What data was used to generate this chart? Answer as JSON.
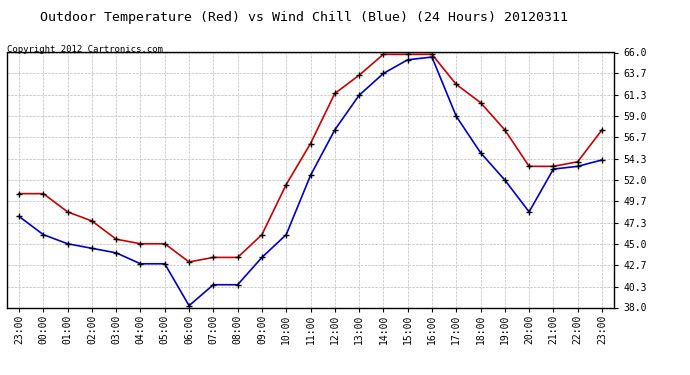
{
  "title": "Outdoor Temperature (Red) vs Wind Chill (Blue) (24 Hours) 20120311",
  "copyright": "Copyright 2012 Cartronics.com",
  "x_labels": [
    "23:00",
    "00:00",
    "01:00",
    "02:00",
    "03:00",
    "04:00",
    "05:00",
    "06:00",
    "07:00",
    "08:00",
    "09:00",
    "10:00",
    "11:00",
    "12:00",
    "13:00",
    "14:00",
    "15:00",
    "16:00",
    "17:00",
    "18:00",
    "19:00",
    "20:00",
    "21:00",
    "22:00",
    "23:00"
  ],
  "red_temp": [
    50.5,
    50.5,
    48.5,
    47.5,
    45.5,
    45.0,
    45.0,
    43.0,
    43.5,
    43.5,
    46.0,
    51.5,
    56.0,
    61.5,
    63.5,
    65.8,
    65.8,
    65.8,
    62.5,
    60.5,
    57.5,
    53.5,
    53.5,
    54.0,
    57.5
  ],
  "blue_wc": [
    48.0,
    46.0,
    45.0,
    44.5,
    44.0,
    42.8,
    42.8,
    38.2,
    40.5,
    40.5,
    43.5,
    46.0,
    52.5,
    57.5,
    61.3,
    63.7,
    65.2,
    65.5,
    59.0,
    55.0,
    52.0,
    48.5,
    53.2,
    53.5,
    54.2
  ],
  "y_min": 38.0,
  "y_max": 66.0,
  "y_ticks": [
    38.0,
    40.3,
    42.7,
    45.0,
    47.3,
    49.7,
    52.0,
    54.3,
    56.7,
    59.0,
    61.3,
    63.7,
    66.0
  ],
  "red_color": "#cc0000",
  "blue_color": "#0000cc",
  "bg_color": "#ffffff",
  "grid_color": "#bbbbbb",
  "marker": "+",
  "marker_color": "#000000",
  "title_fontsize": 9.5,
  "tick_fontsize": 7,
  "copyright_fontsize": 6.5
}
